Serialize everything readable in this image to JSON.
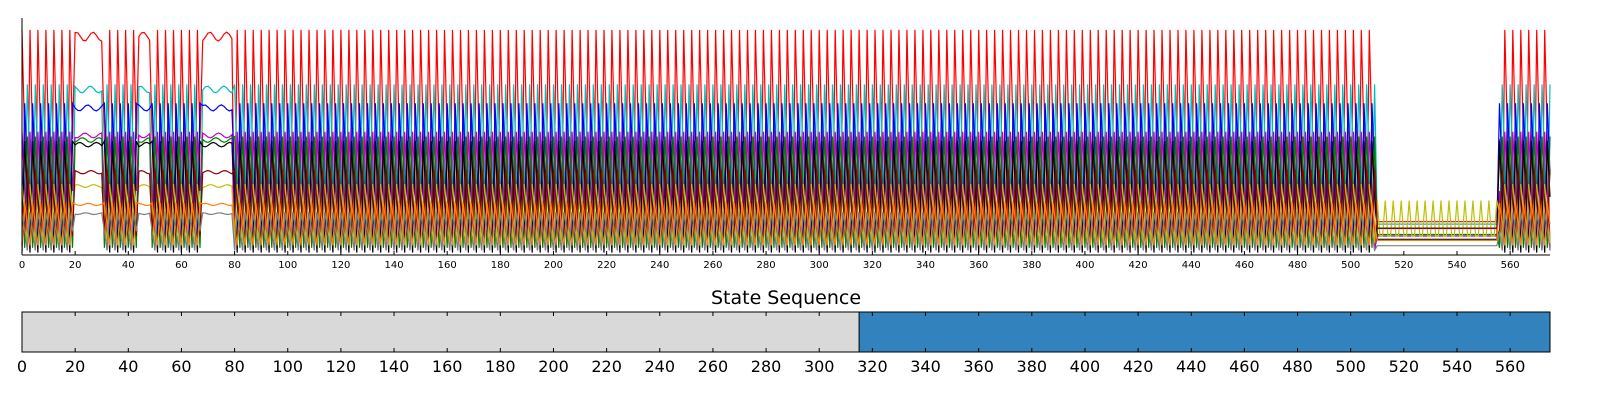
{
  "chart_data": [
    {
      "type": "line",
      "title": "",
      "xlabel": "",
      "ylabel": "",
      "xlim": [
        0,
        575
      ],
      "ylim": [
        0,
        1
      ],
      "grid": false,
      "legend": "none",
      "x_ticks": [
        0,
        20,
        40,
        60,
        80,
        100,
        120,
        140,
        160,
        180,
        200,
        220,
        240,
        260,
        280,
        300,
        320,
        340,
        360,
        380,
        400,
        420,
        440,
        460,
        480,
        500,
        520,
        540,
        560
      ],
      "y_ticks_shown": false,
      "series_note_values": "many overlapping oscillating traces; approximate levels",
      "series": [
        {
          "color": "#ff0000",
          "high": 0.95,
          "low": 0.03
        },
        {
          "color": "#00bfbf",
          "high": 0.72,
          "low": 0.05
        },
        {
          "color": "#0000ff",
          "high": 0.64,
          "low": 0.04
        },
        {
          "color": "#bf00bf",
          "high": 0.52,
          "low": 0.02
        },
        {
          "color": "#008000",
          "high": 0.5,
          "low": 0.03
        },
        {
          "color": "#000000",
          "high": 0.48,
          "low": 0.01
        },
        {
          "color": "#bfbf00",
          "high": 0.3,
          "low": 0.05
        },
        {
          "color": "#8b0000",
          "high": 0.36,
          "low": 0.08
        },
        {
          "color": "#ff7f0e",
          "high": 0.22,
          "low": 0.04
        },
        {
          "color": "#7f7f7f",
          "high": 0.18,
          "low": 0.02
        }
      ]
    },
    {
      "type": "heatmap",
      "title": "State Sequence",
      "xlim": [
        0,
        575
      ],
      "x_ticks": [
        0,
        20,
        40,
        60,
        80,
        100,
        120,
        140,
        160,
        180,
        200,
        220,
        240,
        260,
        280,
        300,
        320,
        340,
        360,
        380,
        400,
        420,
        440,
        460,
        480,
        500,
        520,
        540,
        560
      ],
      "segments": [
        {
          "start": 0,
          "end": 315,
          "color": "#d9d9d9"
        },
        {
          "start": 315,
          "end": 575,
          "color": "#3182bd"
        }
      ]
    }
  ]
}
